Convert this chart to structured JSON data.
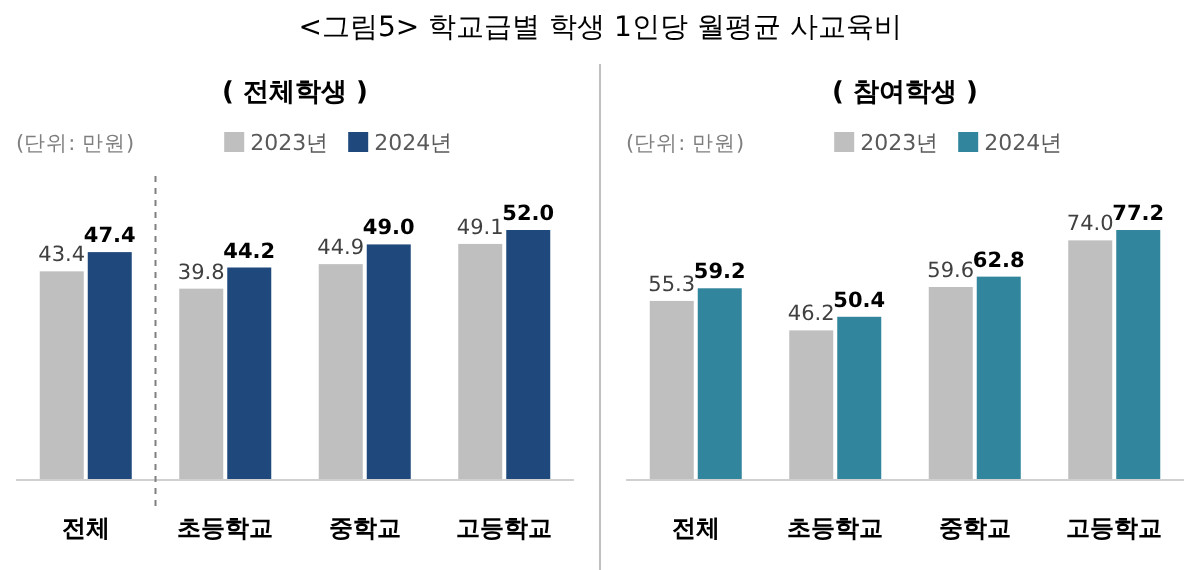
{
  "chart_data": [
    {
      "type": "bar",
      "title": "<그림5> 학교급별 학생 1인당 월평균 사교육비",
      "subtitle": "( 전체학생 )",
      "annotations": [
        "(단위: 만원)"
      ],
      "categories": [
        "전체",
        "초등학교",
        "중학교",
        "고등학교"
      ],
      "legend": "top",
      "series": [
        {
          "name": "2023년",
          "color": "#bfbfbf",
          "values": [
            43.4,
            39.8,
            44.9,
            49.1
          ],
          "value_labels": [
            "43.4",
            "39.8",
            "44.9",
            "49.1"
          ]
        },
        {
          "name": "2024년",
          "color": "#1f497d",
          "values": [
            47.4,
            44.2,
            49.0,
            52.0
          ],
          "value_labels": [
            "47.4",
            "44.2",
            "49.0",
            "52.0"
          ]
        }
      ]
    },
    {
      "type": "bar",
      "subtitle": "( 참여학생 )",
      "annotations": [
        "(단위: 만원)"
      ],
      "categories": [
        "전체",
        "초등학교",
        "중학교",
        "고등학교"
      ],
      "legend": "top",
      "series": [
        {
          "name": "2023년",
          "color": "#bfbfbf",
          "values": [
            55.3,
            46.2,
            59.6,
            74.0
          ],
          "value_labels": [
            "55.3",
            "46.2",
            "59.6",
            "74.0"
          ]
        },
        {
          "name": "2024년",
          "color": "#31859c",
          "values": [
            59.2,
            50.4,
            62.8,
            77.2
          ],
          "value_labels": [
            "59.2",
            "50.4",
            "62.8",
            "77.2"
          ]
        }
      ]
    }
  ]
}
